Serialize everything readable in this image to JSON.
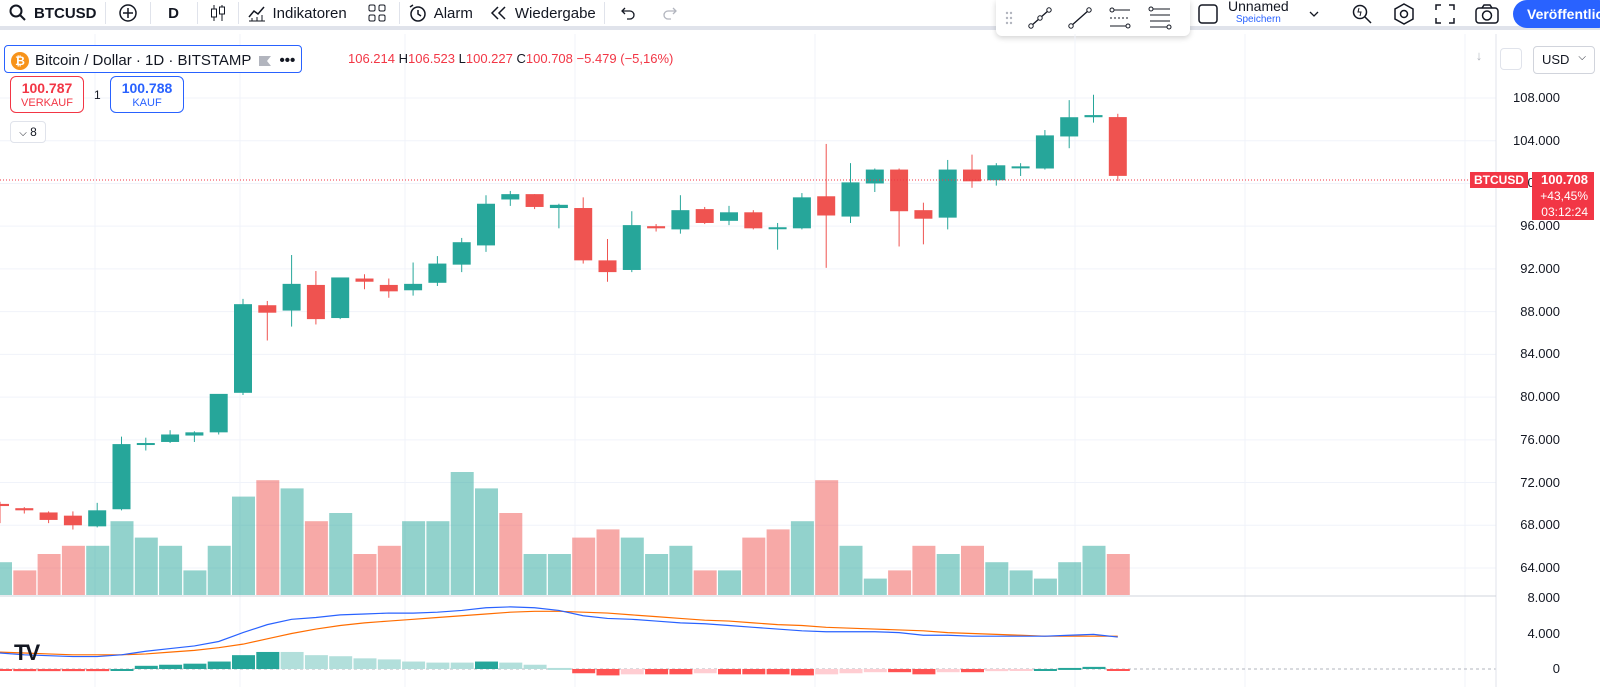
{
  "toolbar": {
    "symbol": "BTCUSD",
    "interval": "D",
    "indicators_label": "Indikatoren",
    "alert_label": "Alarm",
    "replay_label": "Wiedergabe",
    "layout_name": "Unnamed",
    "save_label": "Speichern",
    "publish_label": "Veröffentlichen"
  },
  "legend": {
    "title": "Bitcoin / Dollar · 1D · BITSTAMP",
    "ohlc": {
      "o": "106.214",
      "h": "106.523",
      "l": "100.227",
      "c": "100.708",
      "change": "−5.479 (−5,16%)"
    },
    "sell_price": "100.787",
    "sell_label": "VERKAUF",
    "buy_price": "100.788",
    "buy_label": "KAUF",
    "quantity": "1",
    "indicator_count": "8"
  },
  "price_axis": {
    "currency": "USD",
    "labels": [
      "108.000",
      "104.000",
      "100.000",
      "96.000",
      "92.000",
      "88.000",
      "84.000",
      "80.000",
      "76.000",
      "72.000",
      "68.000",
      "64.000"
    ],
    "current_tag": {
      "symbol": "BTCUSD",
      "price": "100.708",
      "change": "+43,45%",
      "countdown": "03:12:24"
    }
  },
  "macd_axis": {
    "labels": [
      "8.000",
      "4.000",
      "0"
    ]
  },
  "colors": {
    "up": "#26a69a",
    "down": "#ef5350",
    "accent": "#2962ff"
  },
  "chart_data": {
    "type": "candlestick",
    "series": "BTCUSD daily",
    "ylim": [
      62000,
      110000
    ],
    "candles": [
      [
        70000,
        70200,
        68200,
        69800
      ],
      [
        69600,
        69700,
        69100,
        69400
      ],
      [
        69200,
        69300,
        68200,
        68500
      ],
      [
        68900,
        69300,
        67600,
        68000
      ],
      [
        67900,
        70100,
        67800,
        69400
      ],
      [
        69500,
        76300,
        69400,
        75600
      ],
      [
        75600,
        76200,
        75000,
        75700
      ],
      [
        75800,
        76900,
        75700,
        76500
      ],
      [
        76400,
        76800,
        75800,
        76700
      ],
      [
        76700,
        80200,
        76500,
        80300
      ],
      [
        80400,
        89200,
        80200,
        88700
      ],
      [
        88600,
        89000,
        85300,
        87900
      ],
      [
        88100,
        93300,
        86600,
        90600
      ],
      [
        90500,
        91800,
        86800,
        87300
      ],
      [
        87400,
        91100,
        87300,
        91200
      ],
      [
        91100,
        91500,
        90100,
        90800
      ],
      [
        90500,
        91100,
        89300,
        89900
      ],
      [
        90000,
        92600,
        89500,
        90600
      ],
      [
        90700,
        93200,
        90400,
        92500
      ],
      [
        92400,
        94900,
        91700,
        94500
      ],
      [
        94200,
        98900,
        93600,
        98100
      ],
      [
        98500,
        99300,
        97900,
        99000
      ],
      [
        99000,
        99000,
        97600,
        97800
      ],
      [
        97700,
        98100,
        95800,
        98000
      ],
      [
        97700,
        98700,
        92500,
        92800
      ],
      [
        92800,
        94800,
        90800,
        91700
      ],
      [
        91900,
        97400,
        91700,
        96100
      ],
      [
        96000,
        96200,
        95500,
        95800
      ],
      [
        95700,
        98900,
        95300,
        97500
      ],
      [
        97600,
        97800,
        96200,
        96300
      ],
      [
        96500,
        97900,
        96100,
        97300
      ],
      [
        97300,
        97500,
        95700,
        95800
      ],
      [
        95900,
        96300,
        93800,
        95900
      ],
      [
        95800,
        99100,
        95700,
        98700
      ],
      [
        98800,
        103700,
        92100,
        97000
      ],
      [
        96900,
        101900,
        96300,
        100100
      ],
      [
        100000,
        101400,
        99200,
        101300
      ],
      [
        101300,
        101400,
        94100,
        97400
      ],
      [
        97500,
        98200,
        94300,
        96700
      ],
      [
        96800,
        102200,
        95700,
        101300
      ],
      [
        101300,
        102700,
        99600,
        100200
      ],
      [
        100300,
        101900,
        99800,
        101700
      ],
      [
        101500,
        101900,
        100700,
        101600
      ],
      [
        101400,
        105000,
        101300,
        104500
      ],
      [
        104400,
        107800,
        103300,
        106200
      ],
      [
        106200,
        108300,
        105700,
        106400
      ],
      [
        106214,
        106523,
        100227,
        100708
      ]
    ],
    "volume_up": [
      true,
      false,
      false,
      false,
      true,
      true,
      true,
      true,
      true,
      true,
      true,
      false,
      true,
      false,
      true,
      false,
      false,
      true,
      true,
      true,
      true,
      false,
      true,
      true,
      false,
      false,
      true,
      true,
      true,
      false,
      true,
      false,
      false,
      true,
      false,
      true,
      true,
      false,
      false,
      true,
      false,
      true,
      true,
      true,
      true,
      true,
      false
    ],
    "volume": [
      4,
      3,
      5,
      6,
      6,
      9,
      7,
      6,
      3,
      6,
      12,
      14,
      13,
      9,
      10,
      5,
      6,
      9,
      9,
      15,
      13,
      10,
      5,
      5,
      7,
      8,
      7,
      5,
      6,
      3,
      3,
      7,
      8,
      9,
      14,
      6,
      2,
      3,
      6,
      5,
      6,
      4,
      3,
      2,
      4,
      6,
      5
    ],
    "macd_line": [
      1.8,
      1.6,
      1.5,
      1.4,
      1.4,
      1.6,
      2.0,
      2.3,
      2.6,
      3.1,
      4.1,
      5.0,
      5.6,
      5.8,
      6.1,
      6.2,
      6.3,
      6.3,
      6.4,
      6.6,
      6.9,
      7.0,
      6.9,
      6.6,
      6.0,
      5.7,
      5.6,
      5.4,
      5.2,
      5.1,
      4.9,
      4.7,
      4.5,
      4.3,
      4.2,
      4.2,
      4.2,
      4.1,
      3.8,
      3.8,
      3.7,
      3.7,
      3.7,
      3.7,
      3.8,
      3.9,
      3.6
    ],
    "signal_line": [
      1.9,
      1.8,
      1.7,
      1.6,
      1.6,
      1.6,
      1.7,
      1.9,
      2.1,
      2.4,
      2.8,
      3.4,
      4.0,
      4.5,
      4.9,
      5.2,
      5.4,
      5.6,
      5.8,
      6.0,
      6.2,
      6.4,
      6.5,
      6.5,
      6.4,
      6.3,
      6.1,
      5.9,
      5.7,
      5.5,
      5.4,
      5.2,
      5.0,
      4.9,
      4.7,
      4.6,
      4.5,
      4.4,
      4.3,
      4.1,
      4.0,
      3.9,
      3.8,
      3.7,
      3.7,
      3.7,
      3.7
    ],
    "macd_ylim": [
      0,
      8
    ]
  }
}
